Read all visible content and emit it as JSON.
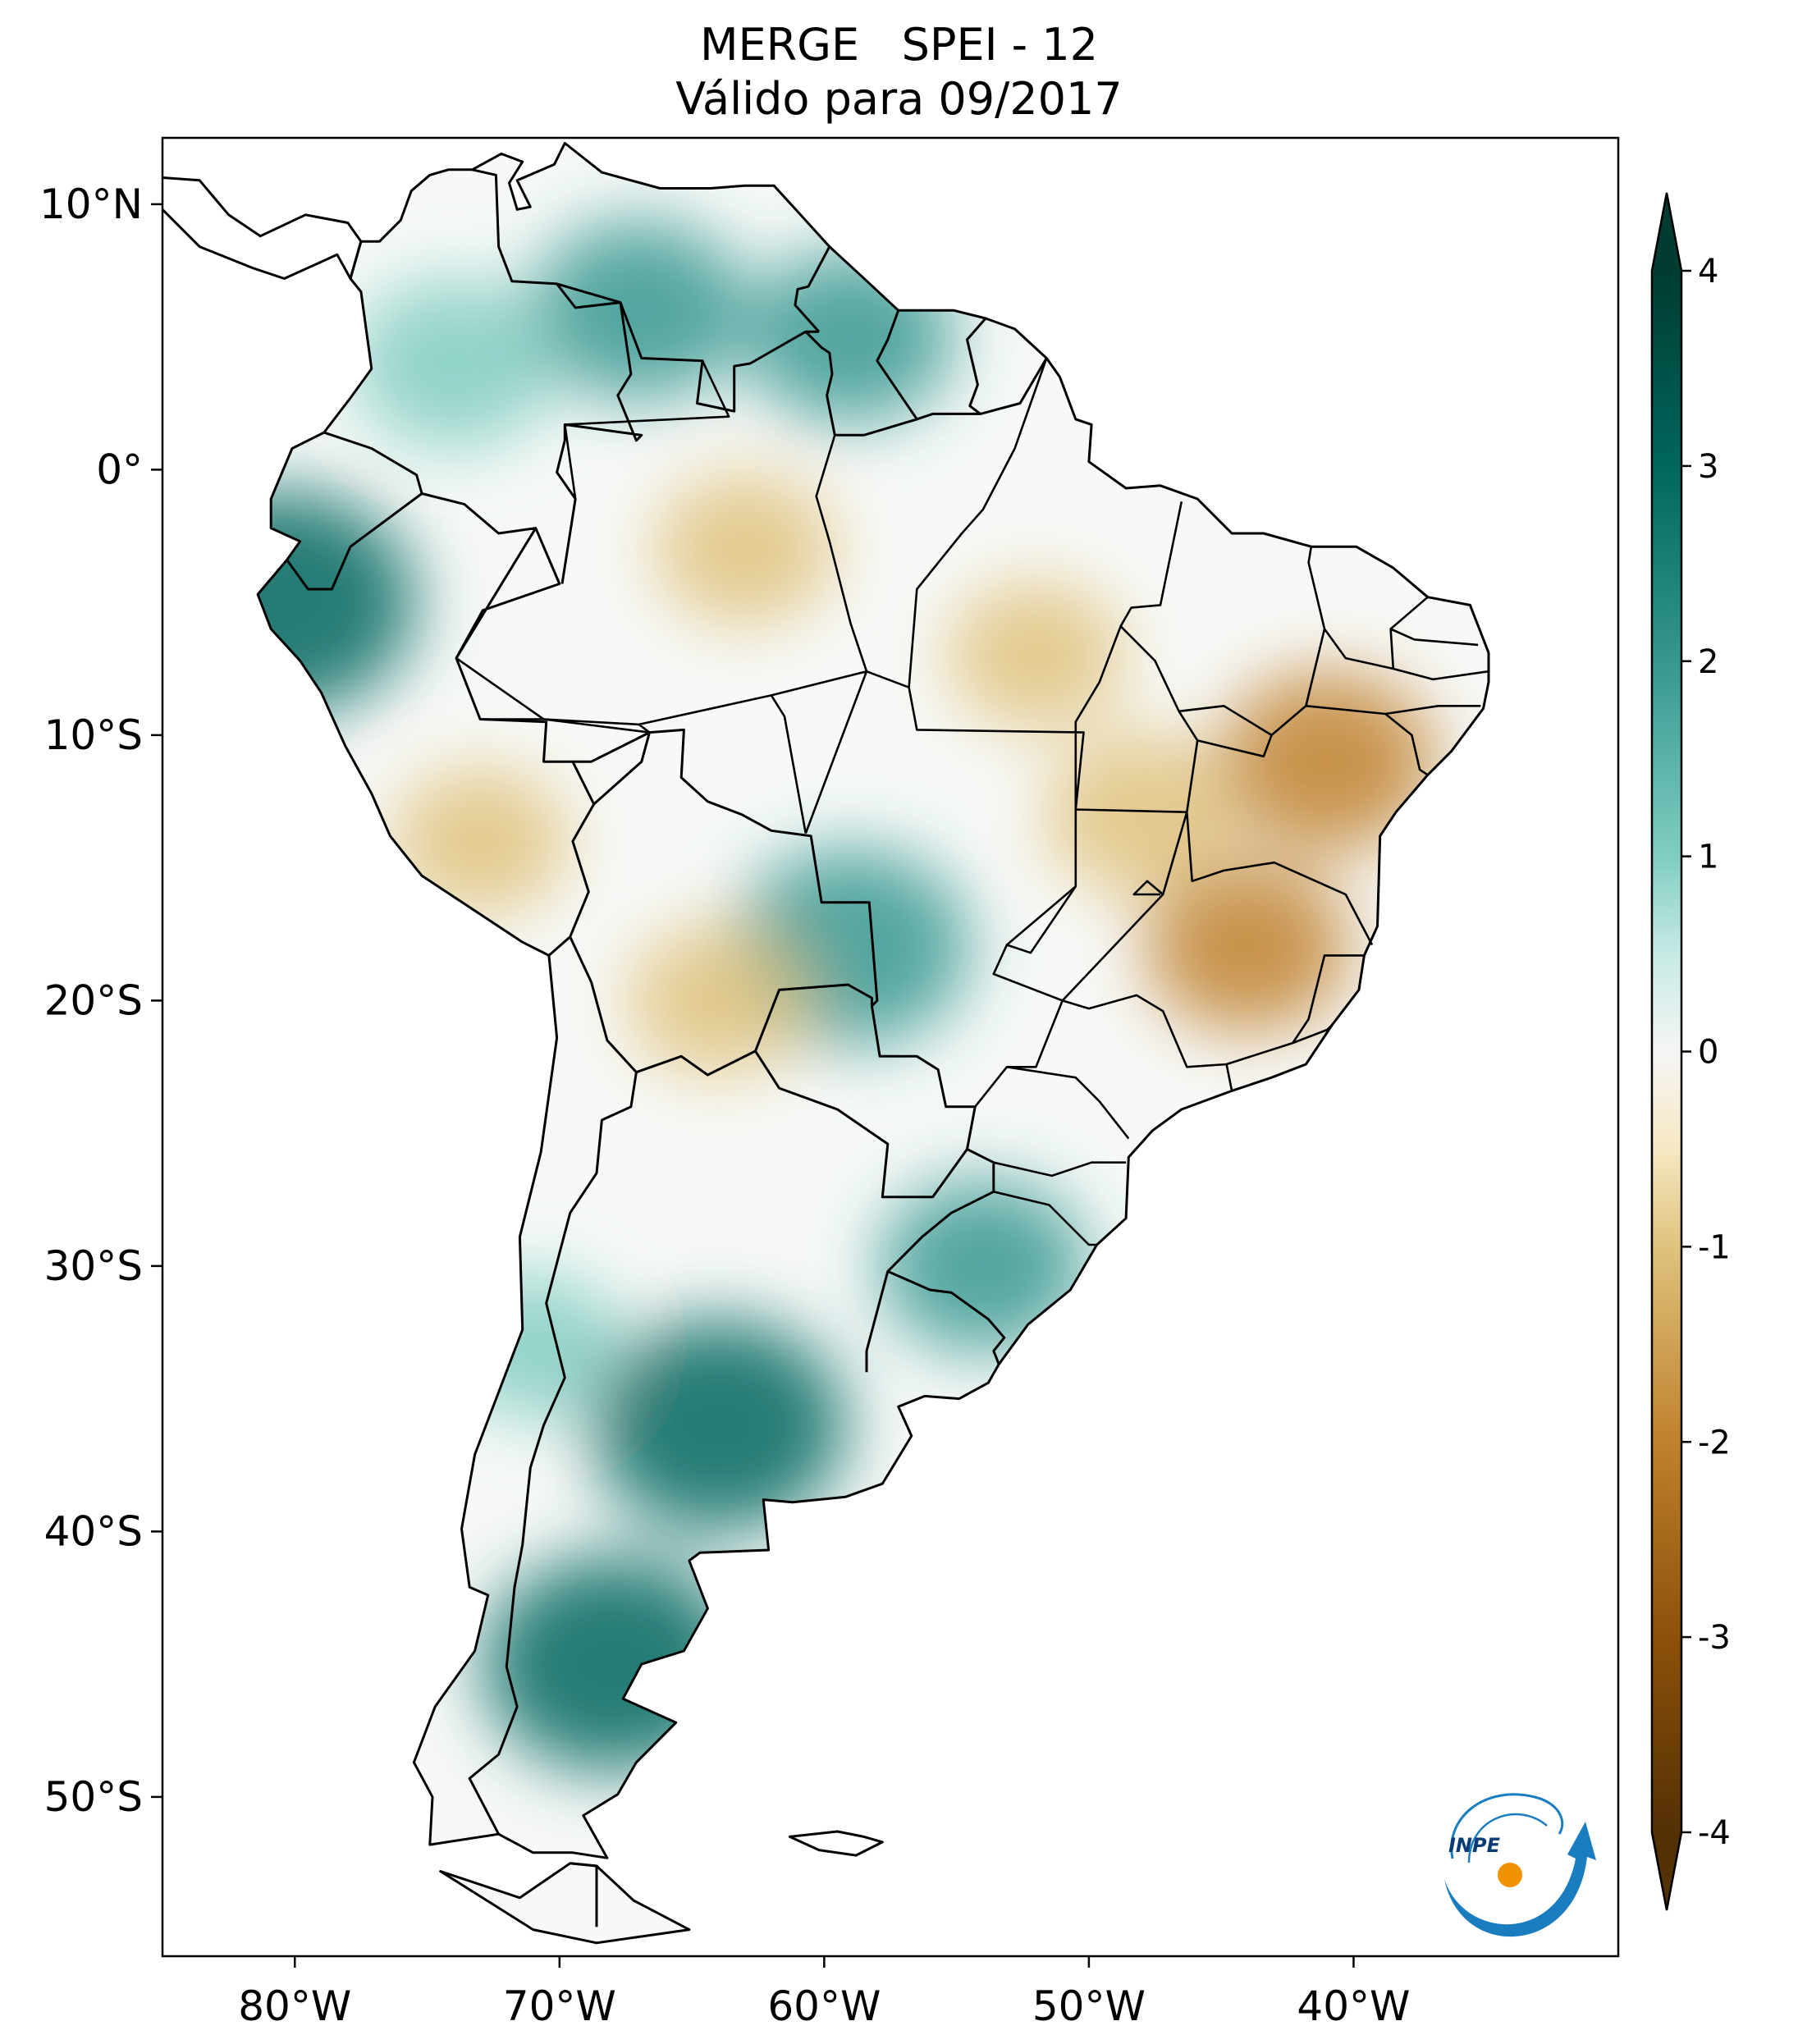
{
  "title": {
    "line1": "MERGE   SPEI - 12",
    "line2": "Válido para 09/2017"
  },
  "map": {
    "region": "South America",
    "lon_range": [
      -85,
      -30
    ],
    "lat_range": [
      -56,
      12.5
    ],
    "lon_ticks": [
      "80°W",
      "70°W",
      "60°W",
      "50°W",
      "40°W"
    ],
    "lon_tick_values": [
      -80,
      -70,
      -60,
      -50,
      -40
    ],
    "lat_ticks": [
      "10°N",
      "0°",
      "10°S",
      "20°S",
      "30°S",
      "40°S",
      "50°S"
    ],
    "lat_tick_values": [
      10,
      0,
      -10,
      -20,
      -30,
      -40,
      -50
    ],
    "ocean_color": "#ffffff",
    "border_color": "#000000",
    "anomalies": [
      {
        "region": "Venezuela / Colombia",
        "lon": -67,
        "lat": 6,
        "level": 1.8
      },
      {
        "region": "Colombia Andes",
        "lon": -74,
        "lat": 4,
        "level": 1.5
      },
      {
        "region": "Ecuador / N Peru coast",
        "lon": -80.5,
        "lat": -5,
        "level": 3.0
      },
      {
        "region": "Guyana",
        "lon": -59,
        "lat": 5,
        "level": 1.6
      },
      {
        "region": "Central Amazon",
        "lon": -63,
        "lat": -3,
        "level": -1.0
      },
      {
        "region": "Eastern Amazon / Pará",
        "lon": -52,
        "lat": -7,
        "level": -0.9
      },
      {
        "region": "NE Brazil (Bahia)",
        "lon": -41,
        "lat": -11,
        "level": -1.8
      },
      {
        "region": "Minas Gerais",
        "lon": -44,
        "lat": -18,
        "level": -1.5
      },
      {
        "region": "Goiás / Tocantins",
        "lon": -48,
        "lat": -13,
        "level": -1.3
      },
      {
        "region": "Mato Grosso do Sul / Pantanal",
        "lon": -59,
        "lat": -18,
        "level": 2.3
      },
      {
        "region": "Bolivia lowlands",
        "lon": -64,
        "lat": -20,
        "level": -1.0
      },
      {
        "region": "Southern Brazil / Uruguay",
        "lon": -54,
        "lat": -30,
        "level": 1.6
      },
      {
        "region": "Argentina pampas",
        "lon": -64,
        "lat": -36,
        "level": 2.7
      },
      {
        "region": "Patagonia",
        "lon": -68,
        "lat": -45,
        "level": 2.8
      },
      {
        "region": "Southern Peru",
        "lon": -73,
        "lat": -14,
        "level": -0.9
      },
      {
        "region": "Central Chile",
        "lon": -71,
        "lat": -33,
        "level": 0.8
      }
    ]
  },
  "colorbar": {
    "min": -4,
    "max": 4,
    "tick_values": [
      4,
      3,
      2,
      1,
      0,
      -1,
      -2,
      -3,
      -4
    ],
    "tick_labels": [
      "4",
      "3",
      "2",
      "1",
      "0",
      "-1",
      "-2",
      "-3",
      "-4"
    ],
    "colors": [
      {
        "v": -4,
        "c": "#543005"
      },
      {
        "v": -3,
        "c": "#8c510a"
      },
      {
        "v": -2,
        "c": "#bf812d"
      },
      {
        "v": -1,
        "c": "#dfc27d"
      },
      {
        "v": -0.5,
        "c": "#f6e8c3"
      },
      {
        "v": 0,
        "c": "#f5f5f5"
      },
      {
        "v": 0.5,
        "c": "#c7eae5"
      },
      {
        "v": 1,
        "c": "#80cdc1"
      },
      {
        "v": 2,
        "c": "#35978f"
      },
      {
        "v": 3,
        "c": "#01665e"
      },
      {
        "v": 4,
        "c": "#003c30"
      }
    ]
  },
  "logo": {
    "text": "INPE",
    "arc_color": "#1a7dc0",
    "dot_color": "#f39200"
  }
}
